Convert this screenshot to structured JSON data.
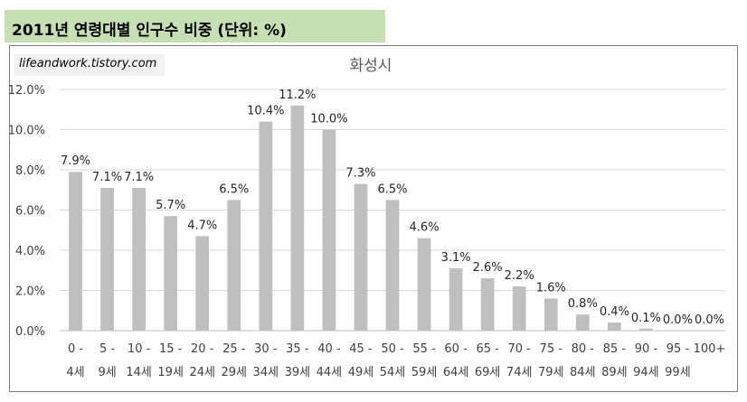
{
  "header": {
    "title": "2011년 연령대별 인구수 비중 (단위: %)"
  },
  "watermark": {
    "text": "lifeandwork.tistory.com"
  },
  "chart_data": {
    "type": "bar",
    "title": "화성시",
    "xlabel": "",
    "ylabel": "",
    "ylim": [
      0,
      12
    ],
    "yticks": [
      0,
      2,
      4,
      6,
      8,
      10,
      12
    ],
    "ytick_labels": [
      "0.0%",
      "2.0%",
      "4.0%",
      "6.0%",
      "8.0%",
      "10.0%",
      "12.0%"
    ],
    "grid": true,
    "bar_color": "#bfbfbf",
    "categories": [
      [
        "0 -",
        "4세"
      ],
      [
        "5 -",
        "9세"
      ],
      [
        "10 -",
        "14세"
      ],
      [
        "15 -",
        "19세"
      ],
      [
        "20 -",
        "24세"
      ],
      [
        "25 -",
        "29세"
      ],
      [
        "30 -",
        "34세"
      ],
      [
        "35 -",
        "39세"
      ],
      [
        "40 -",
        "44세"
      ],
      [
        "45 -",
        "49세"
      ],
      [
        "50 -",
        "54세"
      ],
      [
        "55 -",
        "59세"
      ],
      [
        "60 -",
        "64세"
      ],
      [
        "65 -",
        "69세"
      ],
      [
        "70 -",
        "74세"
      ],
      [
        "75 -",
        "79세"
      ],
      [
        "80 -",
        "84세"
      ],
      [
        "85 -",
        "89세"
      ],
      [
        "90 -",
        "94세"
      ],
      [
        "95 -",
        "99세"
      ],
      [
        "100+",
        ""
      ]
    ],
    "values": [
      7.9,
      7.1,
      7.1,
      5.7,
      4.7,
      6.5,
      10.4,
      11.2,
      10.0,
      7.3,
      6.5,
      4.6,
      3.1,
      2.6,
      2.2,
      1.6,
      0.8,
      0.4,
      0.1,
      0.0,
      0.0
    ],
    "data_labels": [
      "7.9%",
      "7.1%",
      "7.1%",
      "5.7%",
      "4.7%",
      "6.5%",
      "10.4%",
      "11.2%",
      "10.0%",
      "7.3%",
      "6.5%",
      "4.6%",
      "3.1%",
      "2.6%",
      "2.2%",
      "1.6%",
      "0.8%",
      "0.4%",
      "0.1%",
      "0.0%",
      "0.0%"
    ]
  }
}
